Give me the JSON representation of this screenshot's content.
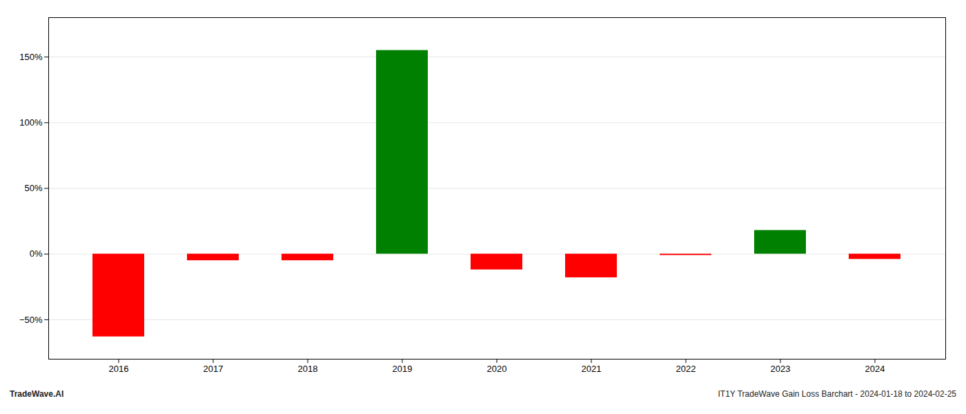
{
  "chart_data": {
    "type": "bar",
    "categories": [
      "2016",
      "2017",
      "2018",
      "2019",
      "2020",
      "2021",
      "2022",
      "2023",
      "2024"
    ],
    "values": [
      -63.0,
      -5.0,
      -5.0,
      155.0,
      -12.0,
      -18.0,
      -1.0,
      18.0,
      -4.0
    ],
    "colors": [
      "#ff0000",
      "#ff0000",
      "#ff0000",
      "#008000",
      "#ff0000",
      "#ff0000",
      "#ff0000",
      "#008000",
      "#ff0000"
    ],
    "ylim": [
      -80,
      180
    ],
    "yticks": [
      {
        "value": -50,
        "label": "−50%"
      },
      {
        "value": 0,
        "label": "0%"
      },
      {
        "value": 50,
        "label": "50%"
      },
      {
        "value": 100,
        "label": "100%"
      },
      {
        "value": 150,
        "label": "150%"
      }
    ],
    "grid": true,
    "annotations": [
      "TradeWave.AI",
      "IT1Y TradeWave Gain Loss Barchart - 2024-01-18 to 2024-02-25"
    ]
  }
}
